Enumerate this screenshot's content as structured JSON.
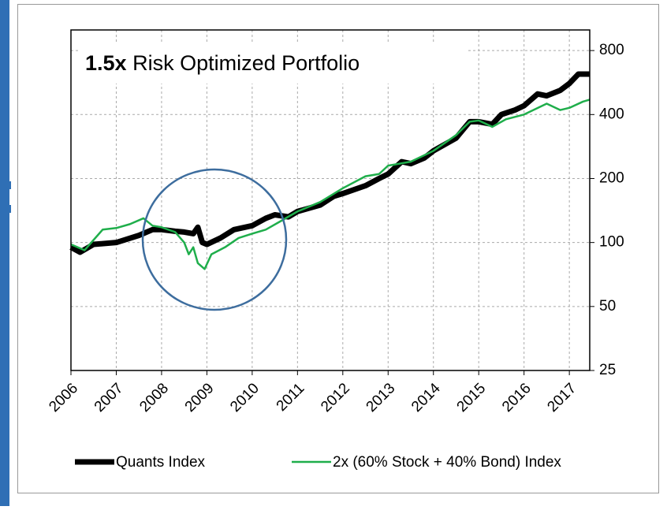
{
  "chart_data": {
    "type": "line",
    "title_prefix": "1.5x",
    "title": "Risk Optimized Portfolio",
    "log_scale_y": true,
    "grid": true,
    "xlim": [
      2006,
      2017.45
    ],
    "xticks": [
      2006,
      2007,
      2008,
      2009,
      2010,
      2011,
      2012,
      2013,
      2014,
      2015,
      2016,
      2017
    ],
    "ylim": [
      25,
      1000
    ],
    "yticks": [
      25,
      50,
      100,
      200,
      400,
      800
    ],
    "legend": "bottom",
    "series": [
      {
        "name": "Quants Index",
        "color": "#000000",
        "x": [
          2006,
          2006.2,
          2006.5,
          2007,
          2007.5,
          2007.8,
          2008,
          2008.3,
          2008.5,
          2008.7,
          2008.8,
          2008.9,
          2009,
          2009.3,
          2009.6,
          2010,
          2010.3,
          2010.5,
          2010.8,
          2011,
          2011.5,
          2011.8,
          2012,
          2012.5,
          2012.8,
          2013,
          2013.3,
          2013.5,
          2013.8,
          2014,
          2014.5,
          2014.8,
          2015,
          2015.3,
          2015.5,
          2015.8,
          2016,
          2016.3,
          2016.5,
          2016.8,
          2017,
          2017.2,
          2017.45
        ],
        "values": [
          95,
          90,
          98,
          100,
          108,
          115,
          115,
          113,
          112,
          110,
          118,
          100,
          98,
          105,
          115,
          120,
          130,
          135,
          132,
          140,
          150,
          165,
          170,
          185,
          200,
          210,
          240,
          235,
          250,
          270,
          310,
          370,
          370,
          360,
          400,
          420,
          440,
          500,
          490,
          520,
          560,
          620,
          620
        ]
      },
      {
        "name": "2x (60% Stock + 40% Bond) Index",
        "color": "#1fae4b",
        "x": [
          2006,
          2006.3,
          2006.7,
          2007,
          2007.3,
          2007.6,
          2007.8,
          2008,
          2008.3,
          2008.5,
          2008.6,
          2008.7,
          2008.8,
          2008.95,
          2009.1,
          2009.4,
          2009.7,
          2010,
          2010.3,
          2010.6,
          2011,
          2011.5,
          2012,
          2012.5,
          2012.8,
          2013,
          2013.5,
          2014,
          2014.5,
          2014.8,
          2015,
          2015.3,
          2015.6,
          2016,
          2016.5,
          2016.8,
          2017,
          2017.3,
          2017.45
        ],
        "values": [
          98,
          92,
          115,
          117,
          122,
          130,
          120,
          118,
          112,
          100,
          88,
          95,
          80,
          75,
          88,
          95,
          105,
          110,
          115,
          125,
          140,
          155,
          180,
          205,
          210,
          230,
          240,
          270,
          320,
          370,
          375,
          350,
          380,
          400,
          450,
          420,
          430,
          460,
          470
        ]
      }
    ]
  }
}
